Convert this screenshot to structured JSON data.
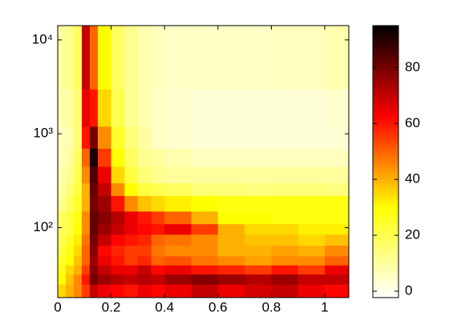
{
  "chart_data": {
    "type": "heatmap",
    "colormap": "hot-reversed",
    "x_edges": [
      0,
      0.03,
      0.06,
      0.09,
      0.12,
      0.15,
      0.2,
      0.25,
      0.3,
      0.35,
      0.4,
      0.5,
      0.6,
      0.7,
      0.8,
      0.9,
      1.0,
      1.09
    ],
    "y_edges": [
      18,
      25,
      32,
      40,
      50,
      65,
      85,
      110,
      150,
      220,
      300,
      450,
      700,
      1200,
      3000,
      14200
    ],
    "z": [
      [
        35,
        40,
        45,
        55,
        70,
        65,
        62,
        60,
        65,
        62,
        65,
        70,
        65,
        68,
        70,
        65,
        62
      ],
      [
        30,
        38,
        45,
        60,
        80,
        75,
        72,
        70,
        72,
        70,
        75,
        78,
        75,
        72,
        75,
        70,
        70
      ],
      [
        28,
        35,
        40,
        55,
        78,
        70,
        65,
        65,
        70,
        62,
        65,
        60,
        58,
        55,
        60,
        55,
        65
      ],
      [
        25,
        30,
        38,
        50,
        75,
        65,
        60,
        55,
        58,
        50,
        52,
        48,
        45,
        42,
        45,
        45,
        50
      ],
      [
        22,
        28,
        35,
        50,
        78,
        62,
        58,
        55,
        55,
        48,
        45,
        45,
        40,
        40,
        42,
        40,
        45
      ],
      [
        20,
        25,
        32,
        48,
        80,
        70,
        62,
        60,
        58,
        50,
        48,
        45,
        40,
        38,
        38,
        35,
        38
      ],
      [
        18,
        22,
        30,
        45,
        82,
        75,
        70,
        65,
        62,
        60,
        65,
        55,
        40,
        35,
        35,
        32,
        32
      ],
      [
        18,
        22,
        28,
        45,
        82,
        78,
        72,
        65,
        60,
        55,
        50,
        40,
        30,
        30,
        28,
        28,
        28
      ],
      [
        12,
        18,
        25,
        40,
        80,
        75,
        60,
        45,
        38,
        35,
        32,
        30,
        28,
        28,
        28,
        28,
        28
      ],
      [
        10,
        15,
        22,
        40,
        82,
        70,
        45,
        30,
        22,
        20,
        18,
        15,
        15,
        14,
        15,
        15,
        14
      ],
      [
        8,
        12,
        20,
        45,
        85,
        65,
        35,
        22,
        15,
        12,
        10,
        10,
        10,
        10,
        10,
        10,
        10
      ],
      [
        6,
        10,
        18,
        50,
        92,
        55,
        30,
        18,
        12,
        10,
        8,
        6,
        6,
        6,
        6,
        6,
        6
      ],
      [
        6,
        8,
        15,
        60,
        80,
        45,
        25,
        15,
        10,
        5,
        4,
        3,
        3,
        3,
        3,
        3,
        3
      ],
      [
        8,
        10,
        15,
        65,
        60,
        35,
        20,
        12,
        8,
        5,
        4,
        3,
        3,
        3,
        3,
        3,
        4
      ],
      [
        10,
        12,
        18,
        70,
        50,
        30,
        18,
        12,
        8,
        6,
        5,
        5,
        5,
        5,
        6,
        6,
        8
      ]
    ],
    "xlim": [
      0,
      1.09
    ],
    "xticks": [
      0,
      0.2,
      0.4,
      0.6,
      0.8,
      1
    ],
    "ylim": [
      18,
      14200
    ],
    "ylog": true,
    "yticks": [
      {
        "value": 100,
        "label": "10²"
      },
      {
        "value": 1000,
        "label": "10³"
      },
      {
        "value": 10000,
        "label": "10⁴"
      }
    ],
    "clim": [
      -2.3,
      95
    ],
    "cticks": [
      0,
      20,
      40,
      60,
      80
    ]
  }
}
